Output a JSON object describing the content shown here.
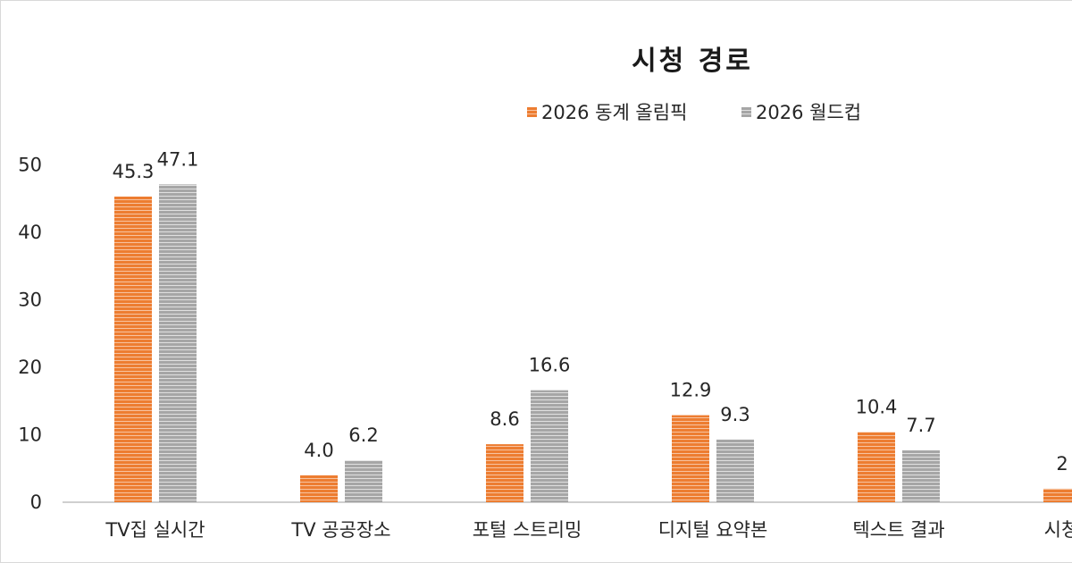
{
  "chart_data": {
    "type": "bar",
    "title": "시청 경로",
    "categories": [
      "TV집 실시간",
      "TV 공공장소",
      "포털 스트리밍",
      "디지털 요약본",
      "텍스트 결과",
      "시청 안 함"
    ],
    "series": [
      {
        "name": "2026 동계 올림픽",
        "color": "#ed7d31",
        "values": [
          45.3,
          4.0,
          8.6,
          12.9,
          10.4,
          2.0
        ],
        "labels": [
          "45.3",
          "4.0",
          "8.6",
          "12.9",
          "10.4",
          "2"
        ]
      },
      {
        "name": "2026 월드컵",
        "color": "#a6a6a6",
        "values": [
          47.1,
          6.2,
          16.6,
          9.3,
          7.7,
          null
        ],
        "labels": [
          "47.1",
          "6.2",
          "16.6",
          "9.3",
          "7.7",
          ""
        ]
      }
    ],
    "yticks": [
      0,
      10,
      20,
      30,
      40,
      50
    ],
    "ylim": [
      0,
      50
    ],
    "grid": false,
    "legend": "top"
  }
}
